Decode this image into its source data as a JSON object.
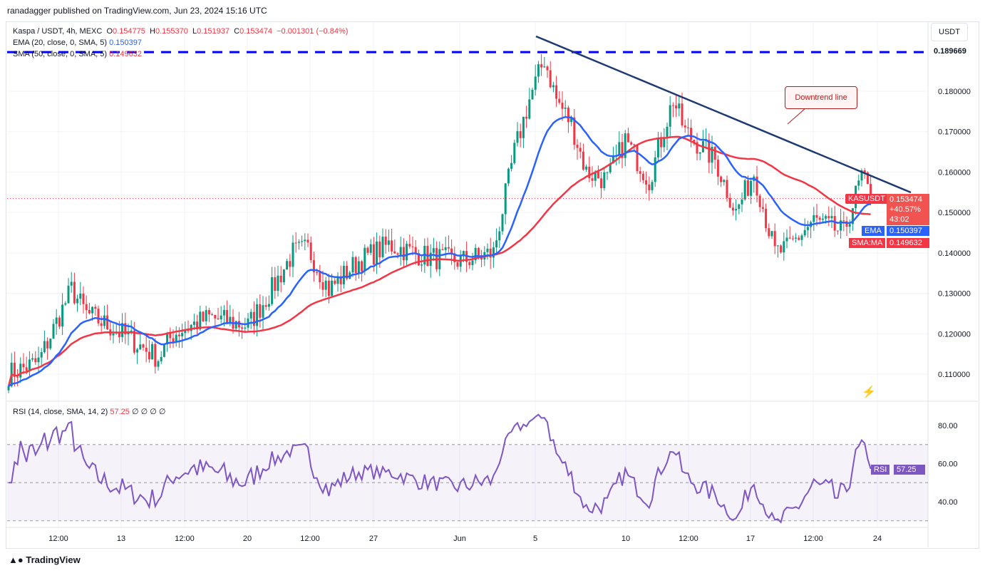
{
  "header": {
    "published": "ranadagger published on TradingView.com, Jun 23, 2024 15:16 UTC"
  },
  "legend": {
    "symbol": "Kaspa / USDT, 4h, MEXC",
    "o_label": "O",
    "o": "0.154775",
    "h_label": "H",
    "h": "0.155370",
    "l_label": "L",
    "l": "0.151937",
    "c_label": "C",
    "c": "0.153474",
    "change": "−0.001301 (−0.84%)",
    "ema": "EMA (20, close, 0, SMA, 5)",
    "ema_val": "0.150397",
    "sma": "SMA (50, close, 0, SMA, 5)",
    "sma_val": "0.149632"
  },
  "rsi_legend": {
    "label": "RSI (14, close, SMA, 14, 2)",
    "value": "57.25",
    "extras": "∅ ∅ ∅ ∅"
  },
  "price_axis": {
    "currency": "USDT",
    "ticks": [
      "0.180000",
      "0.170000",
      "0.160000",
      "0.150000",
      "0.140000",
      "0.130000",
      "0.120000",
      "0.110000"
    ],
    "tick_values": [
      0.18,
      0.17,
      0.16,
      0.15,
      0.14,
      0.13,
      0.12,
      0.11
    ],
    "resistance": "0.189669",
    "resistance_value": 0.189669,
    "symbol_tag": "KASUSDT",
    "last": "0.153474",
    "pct": "+40.57%",
    "countdown": "43:02",
    "ema_tag": "EMA",
    "ema": "0.150397",
    "sma_tag": "SMA:MA",
    "sma": "0.149632"
  },
  "rsi_axis": {
    "ticks": [
      "80.00",
      "60.00",
      "40.00"
    ],
    "tag": "RSI",
    "value": "57.25"
  },
  "time_axis": [
    "12:00",
    "13",
    "12:00",
    "20",
    "12:00",
    "27",
    "Jun",
    "5",
    "10",
    "12:00",
    "17",
    "12:00",
    "24"
  ],
  "annotation": "Downtrend line",
  "brand": "TradingView",
  "colors": {
    "up": "#089981",
    "down": "#f23645",
    "ema": "#2962ff",
    "sma": "#f23645",
    "rsi": "#7e57c2",
    "resistance": "#0000ff",
    "trend": "#1e3a70"
  },
  "price_path": [
    [
      0,
      0.11
    ],
    [
      10,
      0.113
    ],
    [
      21,
      0.131
    ],
    [
      26,
      0.125
    ],
    [
      38,
      0.12
    ],
    [
      50,
      0.114
    ],
    [
      55,
      0.12
    ],
    [
      67,
      0.124
    ],
    [
      80,
      0.122
    ],
    [
      88,
      0.131
    ],
    [
      95,
      0.14
    ],
    [
      100,
      0.141
    ],
    [
      107,
      0.131
    ],
    [
      117,
      0.138
    ],
    [
      127,
      0.142
    ],
    [
      140,
      0.139
    ],
    [
      151,
      0.138
    ],
    [
      162,
      0.14
    ],
    [
      169,
      0.165
    ],
    [
      174,
      0.178
    ],
    [
      179,
      0.188
    ],
    [
      183,
      0.178
    ],
    [
      188,
      0.172
    ],
    [
      193,
      0.16
    ],
    [
      200,
      0.158
    ],
    [
      206,
      0.168
    ],
    [
      214,
      0.158
    ],
    [
      222,
      0.178
    ],
    [
      226,
      0.17
    ],
    [
      236,
      0.163
    ],
    [
      243,
      0.15
    ],
    [
      249,
      0.16
    ],
    [
      256,
      0.14
    ],
    [
      260,
      0.141
    ],
    [
      269,
      0.148
    ],
    [
      279,
      0.145
    ],
    [
      285,
      0.159
    ],
    [
      288,
      0.1535
    ]
  ]
}
